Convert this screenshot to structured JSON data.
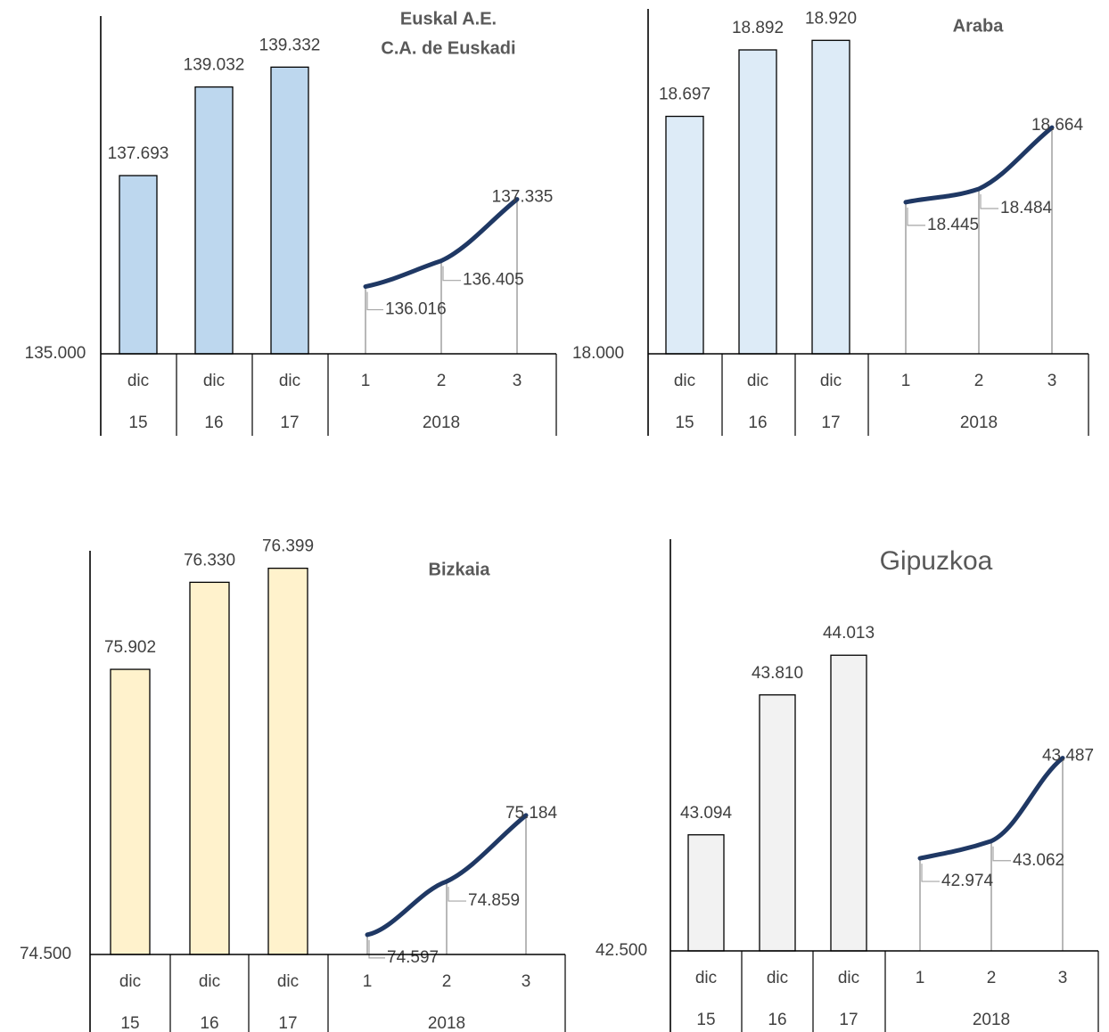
{
  "chart_data": [
    {
      "type": "bar",
      "title_lines": [
        "Euskal A.E.",
        "C.A. de Euskadi"
      ],
      "title_style": "bold",
      "baseline_label": "135.000",
      "ylim": [
        135000,
        139700
      ],
      "bar_color": "#BDD7EE",
      "bars": [
        {
          "month": "dic",
          "year": "15",
          "value": 137693,
          "label": "137.693"
        },
        {
          "month": "dic",
          "year": "16",
          "value": 139032,
          "label": "139.032"
        },
        {
          "month": "dic",
          "year": "17",
          "value": 139332,
          "label": "139.332"
        }
      ],
      "line": {
        "year": "2018",
        "points": [
          {
            "x": "1",
            "value": 136016,
            "label": "136.016"
          },
          {
            "x": "2",
            "value": 136405,
            "label": "136.405"
          },
          {
            "x": "3",
            "value": 137335,
            "label": "137.335"
          }
        ]
      }
    },
    {
      "type": "bar",
      "title_lines": [
        "Araba"
      ],
      "title_style": "bold",
      "baseline_label": "18.000",
      "ylim": [
        18000,
        18960
      ],
      "bar_color": "#DDEBF7",
      "bars": [
        {
          "month": "dic",
          "year": "15",
          "value": 18697,
          "label": "18.697"
        },
        {
          "month": "dic",
          "year": "16",
          "value": 18892,
          "label": "18.892"
        },
        {
          "month": "dic",
          "year": "17",
          "value": 18920,
          "label": "18.920"
        }
      ],
      "line": {
        "year": "2018",
        "points": [
          {
            "x": "1",
            "value": 18445,
            "label": "18.445"
          },
          {
            "x": "2",
            "value": 18484,
            "label": "18.484"
          },
          {
            "x": "3",
            "value": 18664,
            "label": "18.664"
          }
        ]
      }
    },
    {
      "type": "bar",
      "title_lines": [
        "Bizkaia"
      ],
      "title_style": "bold",
      "baseline_label": "74.500",
      "ylim": [
        74500,
        76450
      ],
      "bar_color": "#FFF2CC",
      "bars": [
        {
          "month": "dic",
          "year": "15",
          "value": 75902,
          "label": "75.902"
        },
        {
          "month": "dic",
          "year": "16",
          "value": 76330,
          "label": "76.330"
        },
        {
          "month": "dic",
          "year": "17",
          "value": 76399,
          "label": "76.399"
        }
      ],
      "line": {
        "year": "2018",
        "points": [
          {
            "x": "1",
            "value": 74597,
            "label": "74.597"
          },
          {
            "x": "2",
            "value": 74859,
            "label": "74.859"
          },
          {
            "x": "3",
            "value": 75184,
            "label": "75.184"
          }
        ]
      }
    },
    {
      "type": "bar",
      "title_lines": [
        "Gipuzkoa"
      ],
      "title_style": "plain",
      "baseline_label": "42.500",
      "ylim": [
        42500,
        44160
      ],
      "bar_color": "#F2F2F2",
      "bars": [
        {
          "month": "dic",
          "year": "15",
          "value": 43094,
          "label": "43.094"
        },
        {
          "month": "dic",
          "year": "16",
          "value": 43810,
          "label": "43.810"
        },
        {
          "month": "dic",
          "year": "17",
          "value": 44013,
          "label": "44.013"
        }
      ],
      "line": {
        "year": "2018",
        "points": [
          {
            "x": "1",
            "value": 42974,
            "label": "42.974"
          },
          {
            "x": "2",
            "value": 43062,
            "label": "43.062"
          },
          {
            "x": "3",
            "value": 43487,
            "label": "43.487"
          }
        ]
      }
    }
  ],
  "colors": {
    "line": "#1F3864",
    "bar_stroke": "#000000",
    "leader": "#A6A6A6",
    "text": "#404040"
  }
}
